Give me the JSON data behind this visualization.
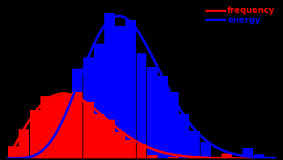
{
  "background_color": "#000000",
  "avg_wind_speed": 6.5,
  "x_max": 25,
  "freq_color": "#ff0000",
  "energy_color": "#0000ff",
  "freq_label": "frequency",
  "energy_label": "energy",
  "legend_fontsize": 7.5,
  "energy_scale_factor": 2.2,
  "noise_seed": 42,
  "freq_noise": 0.006,
  "energy_noise": 0.015
}
